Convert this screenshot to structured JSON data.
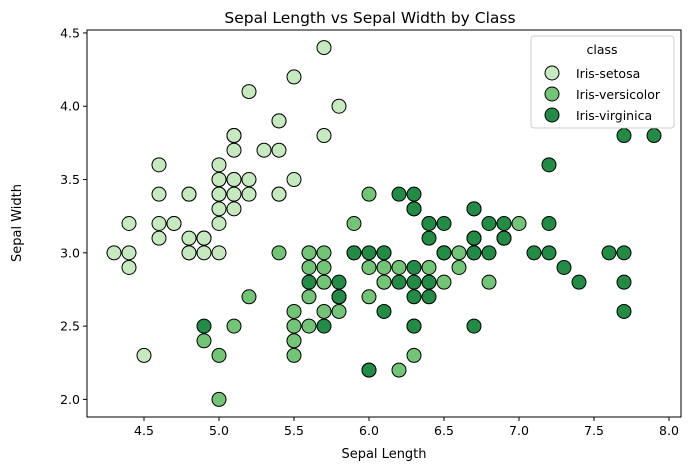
{
  "chart_data": {
    "type": "scatter",
    "title": "Sepal Length vs Sepal Width by Class",
    "xlabel": "Sepal Length",
    "ylabel": "Sepal Width",
    "xlim": [
      4.12,
      8.08
    ],
    "ylim": [
      1.88,
      4.52
    ],
    "xticks": [
      4.5,
      5.0,
      5.5,
      6.0,
      6.5,
      7.0,
      7.5,
      8.0
    ],
    "yticks": [
      2.0,
      2.5,
      3.0,
      3.5,
      4.0,
      4.5
    ],
    "grid": false,
    "legend": {
      "title": "class",
      "position": "top-right"
    },
    "series": [
      {
        "name": "Iris-setosa",
        "color": "#c7e9c0",
        "points": [
          [
            5.1,
            3.5
          ],
          [
            4.9,
            3.0
          ],
          [
            4.7,
            3.2
          ],
          [
            4.6,
            3.1
          ],
          [
            5.0,
            3.6
          ],
          [
            5.4,
            3.9
          ],
          [
            4.6,
            3.4
          ],
          [
            5.0,
            3.4
          ],
          [
            4.4,
            2.9
          ],
          [
            4.9,
            3.1
          ],
          [
            5.4,
            3.7
          ],
          [
            4.8,
            3.4
          ],
          [
            4.8,
            3.0
          ],
          [
            4.3,
            3.0
          ],
          [
            5.8,
            4.0
          ],
          [
            5.7,
            4.4
          ],
          [
            5.4,
            3.9
          ],
          [
            5.1,
            3.5
          ],
          [
            5.7,
            3.8
          ],
          [
            5.1,
            3.8
          ],
          [
            5.4,
            3.4
          ],
          [
            5.1,
            3.7
          ],
          [
            4.6,
            3.6
          ],
          [
            5.1,
            3.3
          ],
          [
            4.8,
            3.4
          ],
          [
            5.0,
            3.0
          ],
          [
            5.0,
            3.4
          ],
          [
            5.2,
            3.5
          ],
          [
            5.2,
            3.4
          ],
          [
            4.7,
            3.2
          ],
          [
            4.8,
            3.1
          ],
          [
            5.4,
            3.4
          ],
          [
            5.2,
            4.1
          ],
          [
            5.5,
            4.2
          ],
          [
            4.9,
            3.1
          ],
          [
            5.0,
            3.2
          ],
          [
            5.5,
            3.5
          ],
          [
            4.9,
            3.1
          ],
          [
            4.4,
            3.0
          ],
          [
            5.1,
            3.4
          ],
          [
            5.0,
            3.5
          ],
          [
            4.5,
            2.3
          ],
          [
            4.4,
            3.2
          ],
          [
            5.0,
            3.5
          ],
          [
            5.1,
            3.8
          ],
          [
            4.8,
            3.0
          ],
          [
            5.1,
            3.8
          ],
          [
            4.6,
            3.2
          ],
          [
            5.3,
            3.7
          ],
          [
            5.0,
            3.3
          ]
        ]
      },
      {
        "name": "Iris-versicolor",
        "color": "#73c476",
        "points": [
          [
            7.0,
            3.2
          ],
          [
            6.4,
            3.2
          ],
          [
            6.9,
            3.1
          ],
          [
            5.5,
            2.3
          ],
          [
            6.5,
            2.8
          ],
          [
            5.7,
            2.8
          ],
          [
            6.3,
            3.3
          ],
          [
            4.9,
            2.4
          ],
          [
            6.6,
            2.9
          ],
          [
            5.2,
            2.7
          ],
          [
            5.0,
            2.0
          ],
          [
            5.9,
            3.0
          ],
          [
            6.0,
            2.2
          ],
          [
            6.1,
            2.9
          ],
          [
            5.6,
            2.9
          ],
          [
            6.7,
            3.1
          ],
          [
            5.6,
            3.0
          ],
          [
            5.8,
            2.7
          ],
          [
            6.2,
            2.2
          ],
          [
            5.6,
            2.5
          ],
          [
            5.9,
            3.2
          ],
          [
            6.1,
            2.8
          ],
          [
            6.3,
            2.5
          ],
          [
            6.1,
            2.8
          ],
          [
            6.4,
            2.9
          ],
          [
            6.6,
            3.0
          ],
          [
            6.8,
            2.8
          ],
          [
            6.7,
            3.0
          ],
          [
            6.0,
            2.9
          ],
          [
            5.7,
            2.6
          ],
          [
            5.5,
            2.4
          ],
          [
            5.5,
            2.4
          ],
          [
            5.8,
            2.7
          ],
          [
            6.0,
            2.7
          ],
          [
            5.4,
            3.0
          ],
          [
            6.0,
            3.4
          ],
          [
            6.7,
            3.1
          ],
          [
            6.3,
            2.3
          ],
          [
            5.6,
            3.0
          ],
          [
            5.5,
            2.5
          ],
          [
            5.5,
            2.6
          ],
          [
            6.1,
            3.0
          ],
          [
            5.8,
            2.6
          ],
          [
            5.0,
            2.3
          ],
          [
            5.6,
            2.7
          ],
          [
            5.7,
            3.0
          ],
          [
            5.7,
            2.9
          ],
          [
            6.2,
            2.9
          ],
          [
            5.1,
            2.5
          ],
          [
            5.7,
            2.8
          ]
        ]
      },
      {
        "name": "Iris-virginica",
        "color": "#238b45",
        "points": [
          [
            6.3,
            3.3
          ],
          [
            5.8,
            2.7
          ],
          [
            7.1,
            3.0
          ],
          [
            6.3,
            2.9
          ],
          [
            6.5,
            3.0
          ],
          [
            7.6,
            3.0
          ],
          [
            4.9,
            2.5
          ],
          [
            7.3,
            2.9
          ],
          [
            6.7,
            2.5
          ],
          [
            7.2,
            3.6
          ],
          [
            6.5,
            3.2
          ],
          [
            6.4,
            2.7
          ],
          [
            6.8,
            3.0
          ],
          [
            5.7,
            2.5
          ],
          [
            5.8,
            2.8
          ],
          [
            6.4,
            3.2
          ],
          [
            6.5,
            3.0
          ],
          [
            7.7,
            3.8
          ],
          [
            7.7,
            2.6
          ],
          [
            6.0,
            2.2
          ],
          [
            6.9,
            3.2
          ],
          [
            5.6,
            2.8
          ],
          [
            7.7,
            2.8
          ],
          [
            6.3,
            2.7
          ],
          [
            6.7,
            3.3
          ],
          [
            7.2,
            3.2
          ],
          [
            6.2,
            2.8
          ],
          [
            6.1,
            3.0
          ],
          [
            6.4,
            2.8
          ],
          [
            7.2,
            3.0
          ],
          [
            7.4,
            2.8
          ],
          [
            7.9,
            3.8
          ],
          [
            6.4,
            2.8
          ],
          [
            6.3,
            2.8
          ],
          [
            6.1,
            2.6
          ],
          [
            7.7,
            3.0
          ],
          [
            6.3,
            3.4
          ],
          [
            6.4,
            3.1
          ],
          [
            6.0,
            3.0
          ],
          [
            6.9,
            3.1
          ],
          [
            6.7,
            3.1
          ],
          [
            6.9,
            3.1
          ],
          [
            5.8,
            2.7
          ],
          [
            6.8,
            3.2
          ],
          [
            6.7,
            3.3
          ],
          [
            6.7,
            3.0
          ],
          [
            6.3,
            2.5
          ],
          [
            6.5,
            3.0
          ],
          [
            6.2,
            3.4
          ],
          [
            5.9,
            3.0
          ]
        ]
      }
    ]
  }
}
